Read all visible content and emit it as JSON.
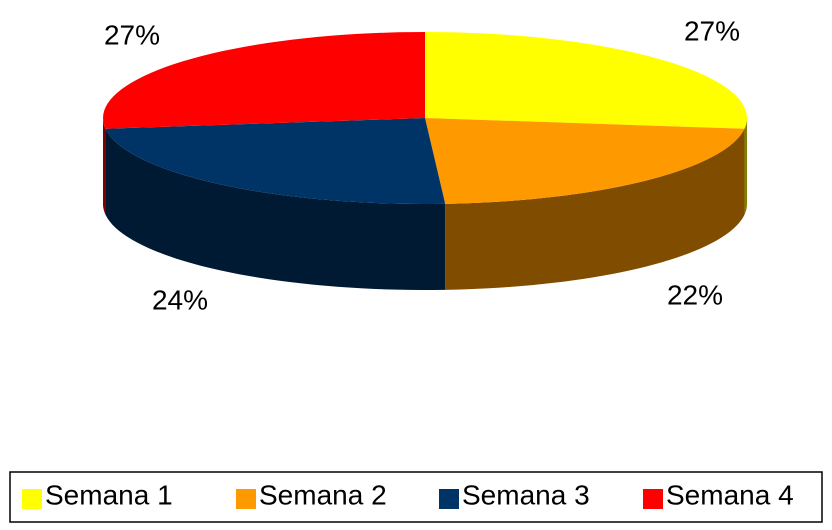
{
  "chart_data": {
    "type": "pie3d",
    "categories": [
      "Semana 1",
      "Semana 2",
      "Semana 3",
      "Semana 4"
    ],
    "values": [
      27,
      22,
      24,
      27
    ],
    "value_labels": [
      "27%",
      "22%",
      "24%",
      "27%"
    ],
    "colors": [
      "#ffff00",
      "#ff9900",
      "#003366",
      "#ff0000"
    ],
    "legend": "bottom"
  }
}
